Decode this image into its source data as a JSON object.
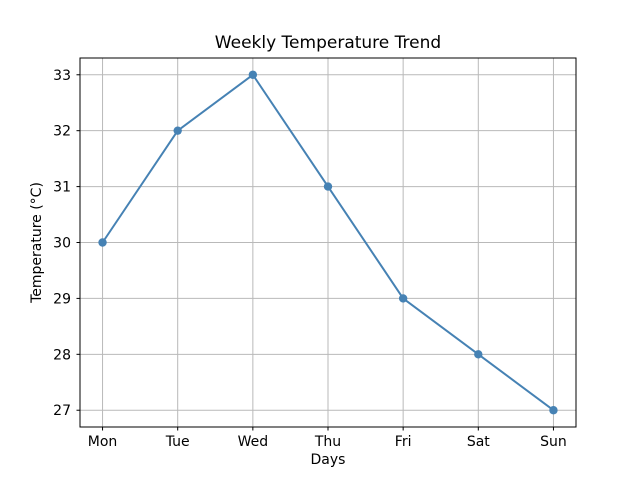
{
  "chart_data": {
    "type": "line",
    "title": "Weekly Temperature Trend",
    "categories": [
      "Mon",
      "Tue",
      "Wed",
      "Thu",
      "Fri",
      "Sat",
      "Sun"
    ],
    "values": [
      30,
      32,
      33,
      31,
      29,
      28,
      27
    ],
    "xlabel": "Days",
    "ylabel": "Temperature (°C)",
    "yticks": [
      27,
      28,
      29,
      30,
      31,
      32,
      33
    ],
    "ylim": [
      26.7,
      33.3
    ],
    "grid": true,
    "legend_position": "none",
    "line_color": "#4682b4",
    "marker": "circle",
    "grid_color": "#b9b9b9",
    "spine_color": "#000000",
    "background_color": "#ffffff"
  }
}
